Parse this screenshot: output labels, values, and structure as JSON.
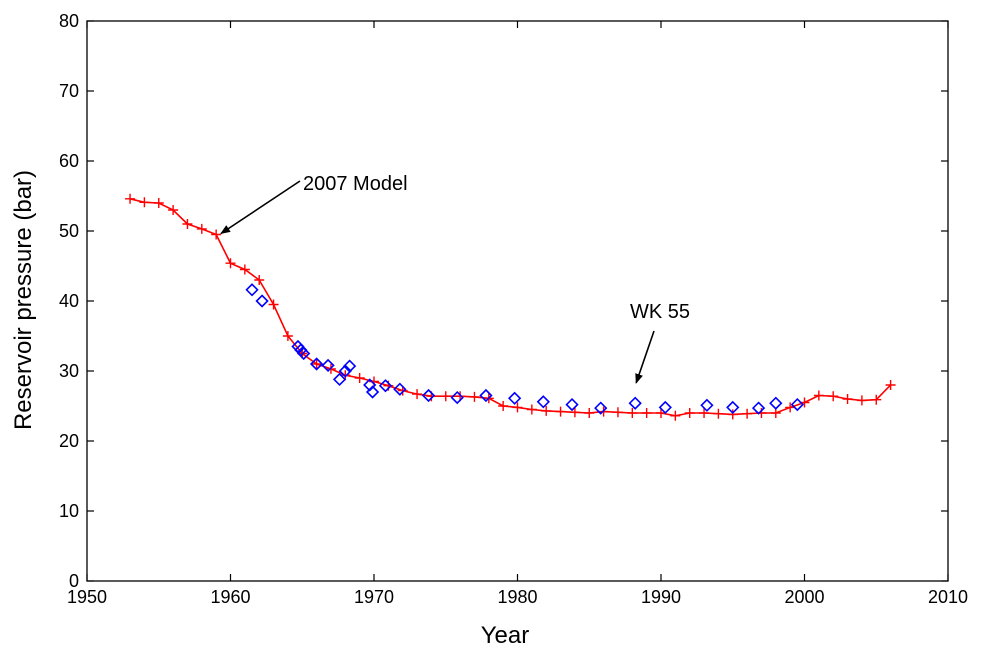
{
  "chart_data": {
    "type": "line",
    "xlabel": "Year",
    "ylabel": "Reservoir pressure (bar)",
    "xlim": [
      1950,
      2010
    ],
    "ylim": [
      0,
      80
    ],
    "xticks": [
      1950,
      1960,
      1970,
      1980,
      1990,
      2000,
      2010
    ],
    "yticks": [
      0,
      10,
      20,
      30,
      40,
      50,
      60,
      70,
      80
    ],
    "grid": false,
    "colors": {
      "model": "#ff0000",
      "observed": "#0000ff",
      "axes": "#000000"
    },
    "series": [
      {
        "marker": "plus",
        "line": true,
        "x": [
          1953,
          1954,
          1955,
          1956,
          1957,
          1958,
          1959,
          1960,
          1961,
          1962,
          1963,
          1964,
          1965,
          1966,
          1967,
          1968,
          1969,
          1970,
          1971,
          1972,
          1973,
          1974,
          1975,
          1976,
          1977,
          1978,
          1979,
          1980,
          1981,
          1982,
          1983,
          1984,
          1985,
          1986,
          1987,
          1988,
          1989,
          1990,
          1991,
          1992,
          1993,
          1994,
          1995,
          1996,
          1997,
          1998,
          1999,
          2000,
          2001,
          2002,
          2003,
          2004,
          2005,
          2006
        ],
        "y": [
          54.6,
          54.1,
          54.0,
          53.0,
          51.0,
          50.3,
          49.5,
          45.4,
          44.5,
          43.0,
          39.5,
          35.0,
          32.5,
          31.0,
          30.3,
          29.4,
          29.0,
          28.5,
          27.9,
          27.2,
          26.7,
          26.4,
          26.4,
          26.4,
          26.3,
          26.1,
          25.0,
          24.8,
          24.5,
          24.3,
          24.2,
          24.1,
          24.0,
          24.2,
          24.1,
          24.0,
          24.0,
          24.0,
          23.6,
          24.0,
          24.0,
          23.9,
          23.8,
          23.9,
          24.0,
          24.0,
          24.8,
          25.5,
          26.5,
          26.4,
          26.0,
          25.8,
          25.9,
          28.0
        ]
      },
      {
        "marker": "diamond",
        "line": false,
        "x": [
          1961.5,
          1962.2,
          1964.7,
          1964.9,
          1965.1,
          1966.0,
          1966.8,
          1967.6,
          1968.0,
          1968.3,
          1969.7,
          1969.9,
          1970.8,
          1971.8,
          1973.8,
          1975.8,
          1977.8,
          1979.8,
          1981.8,
          1983.8,
          1985.8,
          1988.2,
          1990.3,
          1993.2,
          1995.0,
          1996.8,
          1998.0,
          1999.5
        ],
        "y": [
          41.6,
          40.0,
          33.5,
          33.0,
          32.5,
          31.0,
          30.8,
          28.8,
          30.0,
          30.7,
          28.0,
          27.0,
          27.9,
          27.4,
          26.5,
          26.2,
          26.5,
          26.1,
          25.6,
          25.2,
          24.7,
          25.4,
          24.8,
          25.1,
          24.8,
          24.7,
          25.4,
          25.2
        ]
      }
    ],
    "annotations": [
      {
        "text": "2007 Model",
        "target_x": 1959.2,
        "target_y": 49.5
      },
      {
        "text": "WK 55",
        "target_x": 1988.2,
        "target_y": 26.3
      }
    ]
  }
}
